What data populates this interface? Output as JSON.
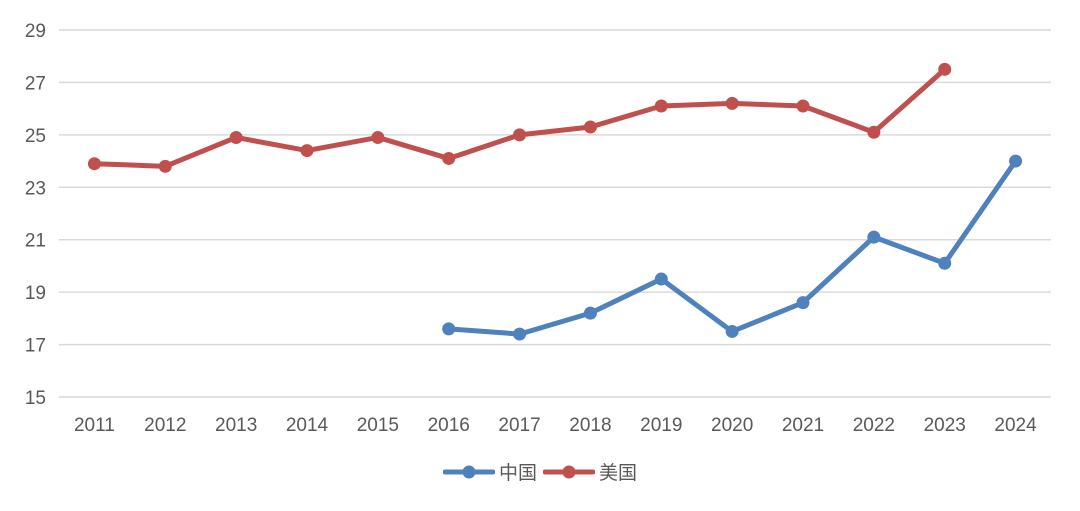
{
  "chart_data": {
    "type": "line",
    "title": "",
    "xlabel": "",
    "ylabel": "",
    "ylim": [
      15,
      29
    ],
    "yticks": [
      15,
      17,
      19,
      21,
      23,
      25,
      27,
      29
    ],
    "grid": true,
    "legend_position": "bottom",
    "categories": [
      "2011",
      "2012",
      "2013",
      "2014",
      "2015",
      "2016",
      "2017",
      "2018",
      "2019",
      "2020",
      "2021",
      "2022",
      "2023",
      "2024"
    ],
    "series": [
      {
        "name": "中国",
        "color": "#4F81BD",
        "values": [
          null,
          null,
          null,
          null,
          null,
          17.6,
          17.4,
          18.2,
          19.5,
          17.5,
          18.6,
          21.1,
          20.1,
          24.0
        ]
      },
      {
        "name": "美国",
        "color": "#C0504D",
        "values": [
          23.9,
          23.8,
          24.9,
          24.4,
          24.9,
          24.1,
          25.0,
          25.3,
          26.1,
          26.2,
          26.1,
          25.1,
          27.5,
          null
        ]
      }
    ]
  },
  "colors": {
    "gridline": "#D9D9D9",
    "tick_label": "#595959"
  }
}
